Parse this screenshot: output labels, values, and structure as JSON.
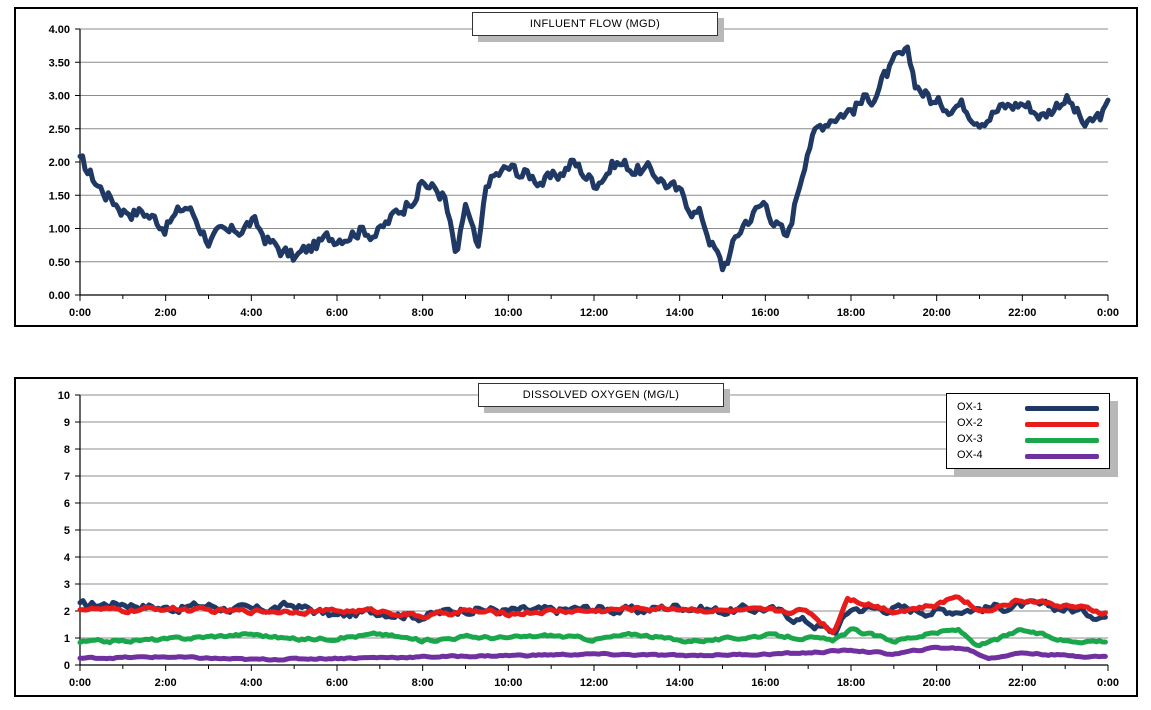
{
  "chart_data": [
    {
      "type": "line",
      "title": "INFLUENT FLOW (MGD)",
      "ylim": [
        0,
        4
      ],
      "yticks": [
        "0.00",
        "0.50",
        "1.00",
        "1.50",
        "2.00",
        "2.50",
        "3.00",
        "3.50",
        "4.00"
      ],
      "xticks": [
        "0:00",
        "2:00",
        "4:00",
        "6:00",
        "8:00",
        "10:00",
        "12:00",
        "14:00",
        "16:00",
        "18:00",
        "20:00",
        "22:00",
        "0:00"
      ],
      "grid": true,
      "series": [
        {
          "color": "#1f3864",
          "x_hours": [
            0,
            0.5,
            1,
            1.5,
            2,
            2.5,
            3,
            3.5,
            4,
            4.5,
            5,
            5.5,
            6,
            6.5,
            7,
            7.5,
            8,
            8.5,
            8.8,
            9,
            9.3,
            9.5,
            10,
            10.5,
            11,
            11.5,
            12,
            12.5,
            13,
            13.5,
            14,
            14.5,
            15,
            15.5,
            16,
            16.5,
            17,
            17.5,
            18,
            18.5,
            19,
            19.3,
            19.5,
            20,
            20.5,
            21,
            21.5,
            22,
            22.5,
            23,
            23.5,
            24
          ],
          "values": [
            2.0,
            1.6,
            1.3,
            1.25,
            1.05,
            1.35,
            0.85,
            0.9,
            1.1,
            0.75,
            0.55,
            0.75,
            0.9,
            1.0,
            0.95,
            1.3,
            1.7,
            1.5,
            0.5,
            1.35,
            0.6,
            1.7,
            1.9,
            1.8,
            1.7,
            2.0,
            1.7,
            2.0,
            1.9,
            1.8,
            1.5,
            1.2,
            0.4,
            1.1,
            1.4,
            0.8,
            2.3,
            2.7,
            2.8,
            3.0,
            3.45,
            3.6,
            3.2,
            2.85,
            2.9,
            2.7,
            2.8,
            2.9,
            2.7,
            3.0,
            2.5,
            2.8
          ]
        }
      ]
    },
    {
      "type": "line",
      "title": "DISSOLVED OXYGEN (MG/L)",
      "ylim": [
        0,
        10
      ],
      "yticks": [
        "0",
        "1",
        "2",
        "3",
        "4",
        "5",
        "6",
        "7",
        "8",
        "9",
        "10"
      ],
      "xticks": [
        "0:00",
        "2:00",
        "4:00",
        "6:00",
        "8:00",
        "10:00",
        "12:00",
        "14:00",
        "16:00",
        "18:00",
        "20:00",
        "22:00",
        "0:00"
      ],
      "grid": true,
      "legend": "top-right",
      "series": [
        {
          "name": "OX-1",
          "color": "#1f3864",
          "x_hours": [
            0,
            1,
            2,
            3,
            4,
            5,
            6,
            7,
            8,
            9,
            10,
            11,
            12,
            13,
            14,
            15,
            16,
            17,
            17.6,
            18,
            19,
            20,
            21,
            22,
            23,
            24
          ],
          "values": [
            2.2,
            2.3,
            2.1,
            2.2,
            2.0,
            2.2,
            1.8,
            2.0,
            1.8,
            2.1,
            2.0,
            2.0,
            2.1,
            2.0,
            2.2,
            2.0,
            2.1,
            1.6,
            1.2,
            2.1,
            2.1,
            2.0,
            2.1,
            2.2,
            2.1,
            1.8
          ]
        },
        {
          "name": "OX-2",
          "color": "#e81b1b",
          "x_hours": [
            0,
            1,
            2,
            3,
            4,
            5,
            6,
            7,
            8,
            9,
            10,
            11,
            12,
            13,
            14,
            15,
            16,
            17,
            17.6,
            17.9,
            19,
            20,
            20.5,
            21,
            22,
            23,
            24
          ],
          "values": [
            2.1,
            2.0,
            2.1,
            2.0,
            2.0,
            2.0,
            2.0,
            2.0,
            1.8,
            2.0,
            1.9,
            2.0,
            2.0,
            2.1,
            2.1,
            2.0,
            2.0,
            2.0,
            1.2,
            2.5,
            2.0,
            2.2,
            2.6,
            2.0,
            2.4,
            2.2,
            1.9
          ]
        },
        {
          "name": "OX-3",
          "color": "#1aa64b",
          "x_hours": [
            0,
            1,
            2,
            3,
            4,
            5,
            6,
            7,
            8,
            9,
            10,
            11,
            12,
            13,
            14,
            15,
            16,
            17,
            17.6,
            18,
            19,
            20,
            20.5,
            21,
            22,
            23,
            24
          ],
          "values": [
            0.85,
            0.9,
            0.95,
            1.05,
            1.15,
            0.95,
            1.0,
            1.15,
            0.9,
            1.05,
            1.0,
            1.1,
            0.95,
            1.15,
            0.9,
            0.95,
            1.1,
            1.0,
            0.9,
            1.3,
            0.9,
            1.2,
            1.3,
            0.7,
            1.3,
            0.9,
            0.9
          ]
        },
        {
          "name": "OX-4",
          "color": "#7030a0",
          "x_hours": [
            0,
            2,
            4,
            6,
            8,
            10,
            12,
            14,
            16,
            17,
            18,
            19,
            20,
            20.7,
            21.2,
            22,
            23,
            24
          ],
          "values": [
            0.25,
            0.3,
            0.2,
            0.25,
            0.3,
            0.35,
            0.4,
            0.35,
            0.4,
            0.45,
            0.55,
            0.4,
            0.65,
            0.6,
            0.25,
            0.45,
            0.35,
            0.3
          ]
        }
      ]
    }
  ]
}
